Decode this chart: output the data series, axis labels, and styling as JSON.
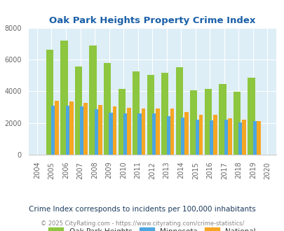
{
  "title": "Oak Park Heights Property Crime Index",
  "years": [
    2004,
    2005,
    2006,
    2007,
    2008,
    2009,
    2010,
    2011,
    2012,
    2013,
    2014,
    2015,
    2016,
    2017,
    2018,
    2019,
    2020
  ],
  "oak_park": [
    0,
    6600,
    7200,
    5550,
    6900,
    5800,
    4150,
    5250,
    5050,
    5150,
    5500,
    4050,
    4150,
    4450,
    3950,
    4850,
    0
  ],
  "minnesota": [
    0,
    3100,
    3100,
    3050,
    2850,
    2650,
    2600,
    2600,
    2600,
    2450,
    2350,
    2200,
    2150,
    2200,
    2050,
    2100,
    0
  ],
  "national": [
    0,
    3400,
    3350,
    3250,
    3150,
    3050,
    2950,
    2900,
    2900,
    2900,
    2700,
    2500,
    2500,
    2300,
    2200,
    2100,
    0
  ],
  "oak_park_color": "#8dc63f",
  "minnesota_color": "#4da6e0",
  "national_color": "#f5a623",
  "bg_color": "#ddeef6",
  "ylim": [
    0,
    8000
  ],
  "yticks": [
    0,
    2000,
    4000,
    6000,
    8000
  ],
  "title_color": "#1a5fa8",
  "subtitle": "Crime Index corresponds to incidents per 100,000 inhabitants",
  "footer": "© 2025 CityRating.com - https://www.cityrating.com/crime-statistics/",
  "subtitle_color": "#1a3a5c",
  "footer_color": "#888888"
}
